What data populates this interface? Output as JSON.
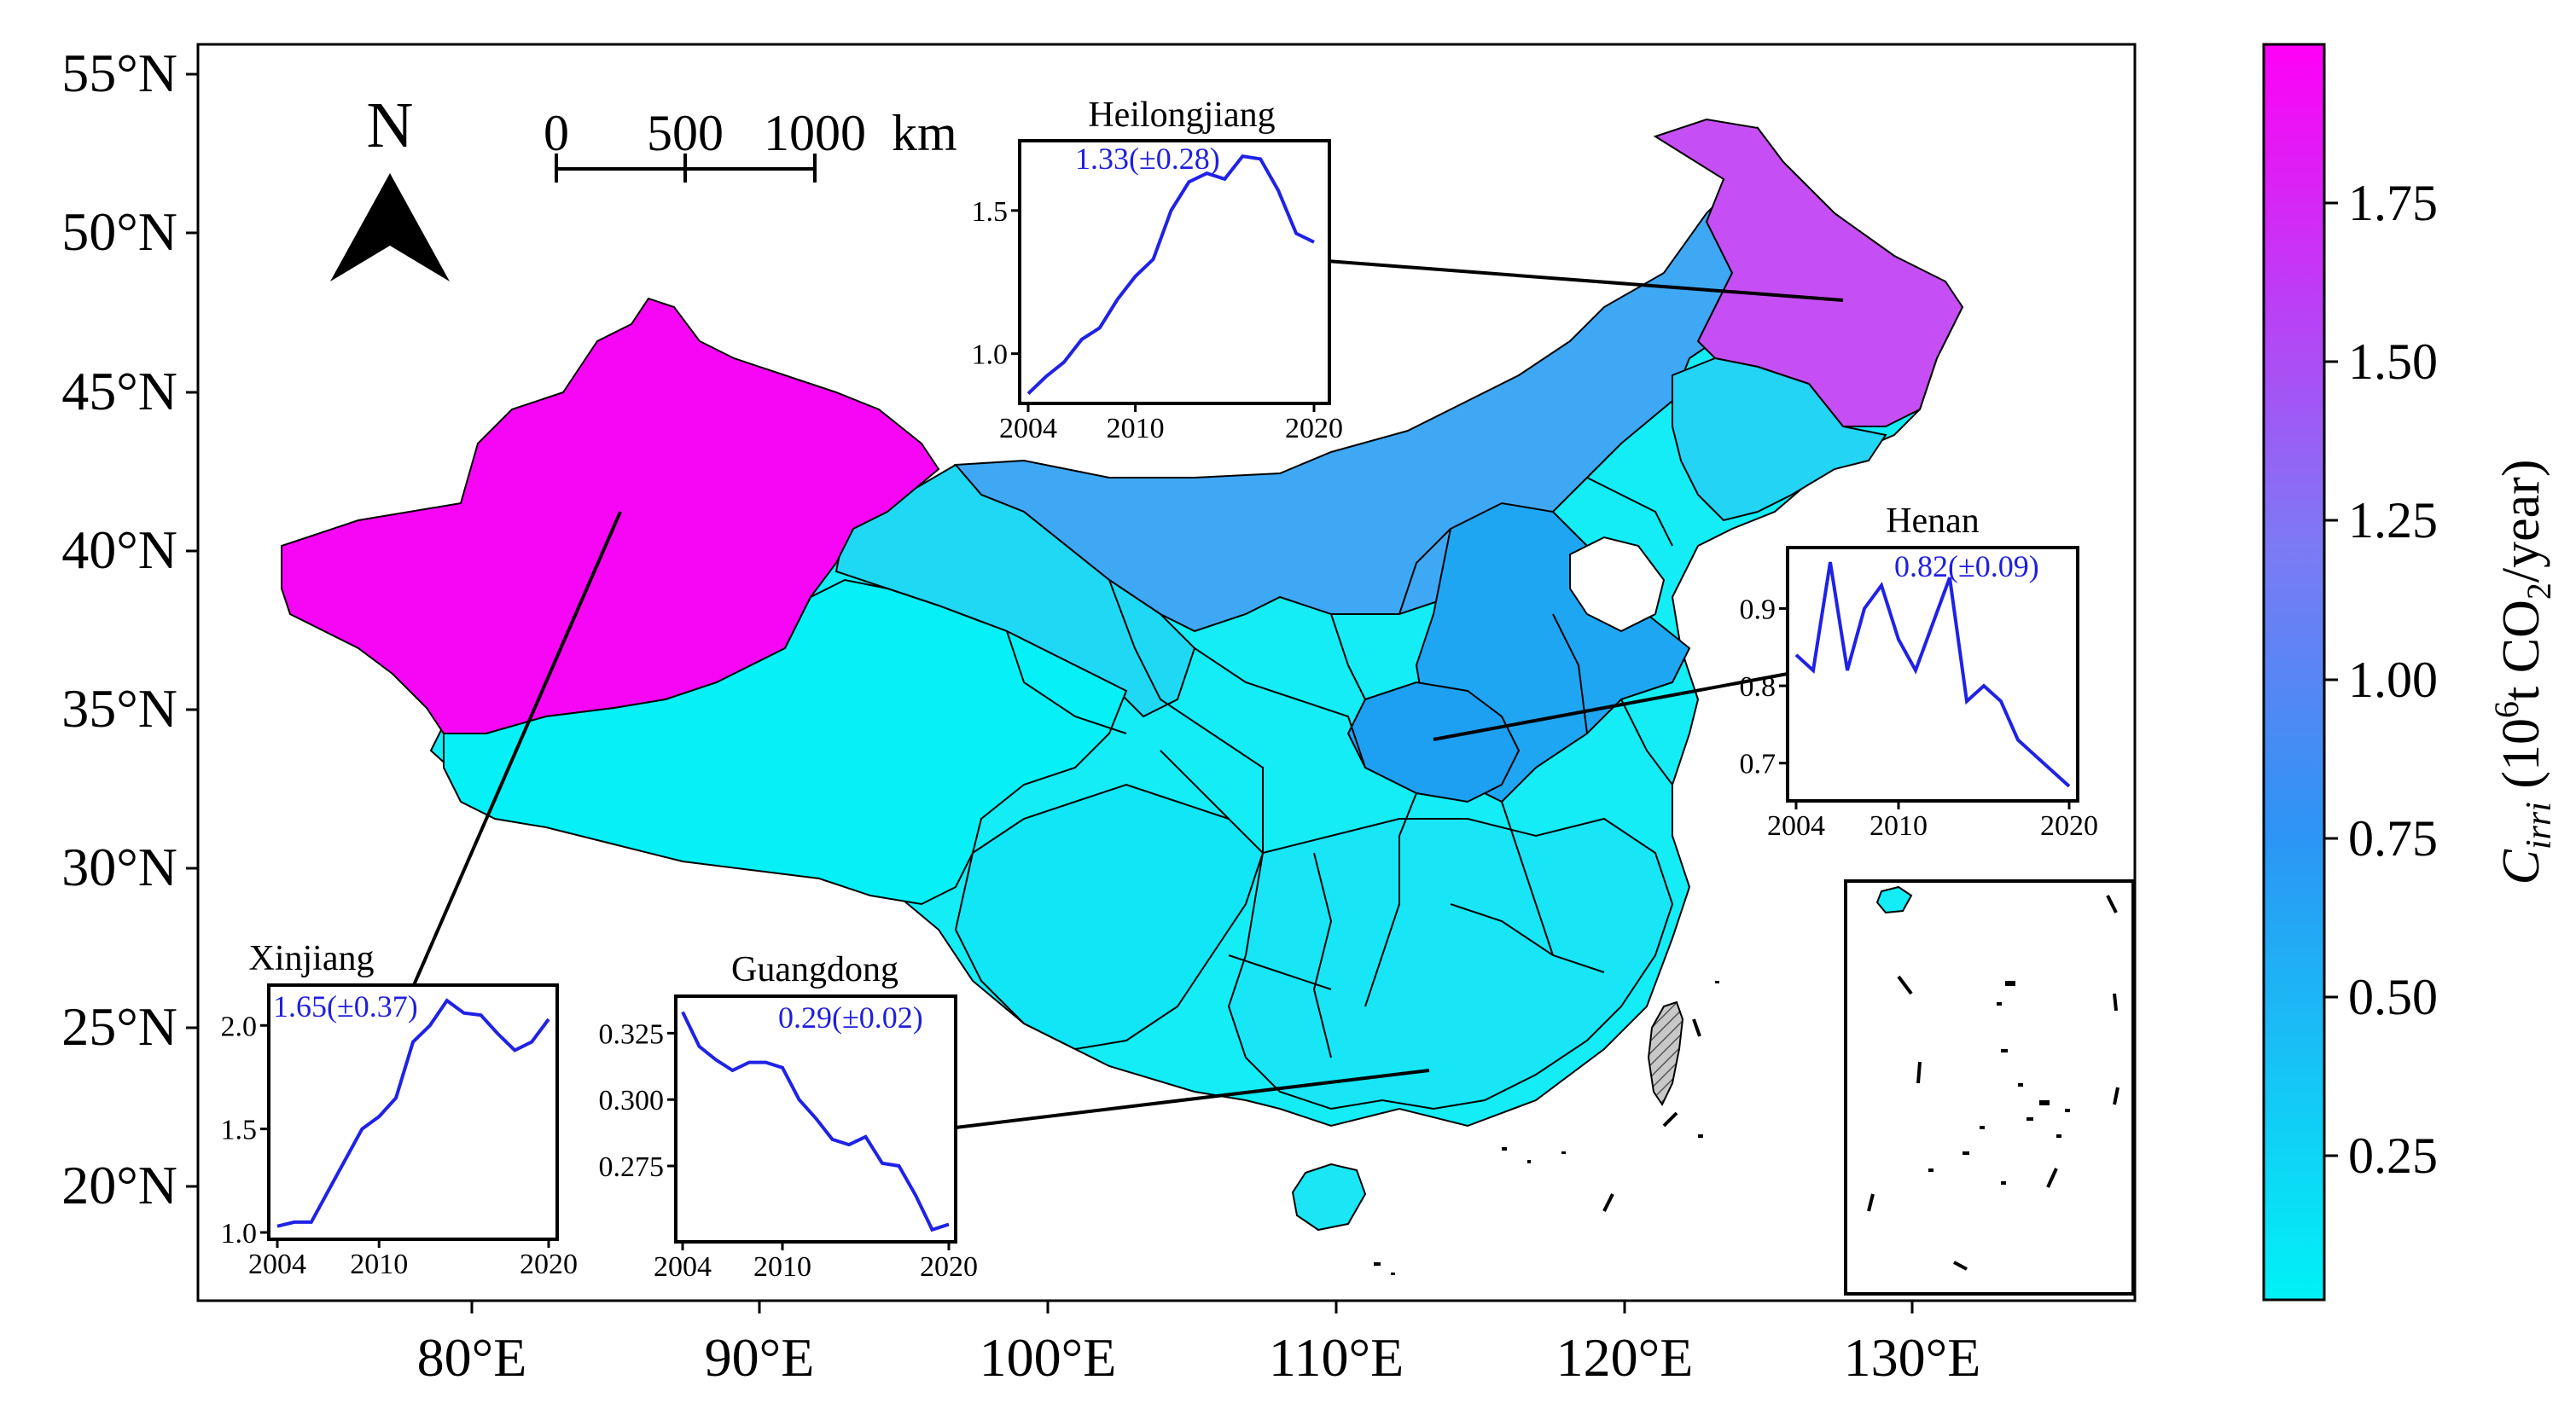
{
  "map": {
    "lat_labels": [
      "55°N",
      "50°N",
      "45°N",
      "40°N",
      "35°N",
      "30°N",
      "25°N",
      "20°N"
    ],
    "lon_labels": [
      "80°E",
      "90°E",
      "100°E",
      "110°E",
      "120°E",
      "130°E"
    ],
    "north_label": "N",
    "scale_ticks": [
      "0",
      "500",
      "1000"
    ],
    "scale_unit": "km"
  },
  "colorbar": {
    "ticks": [
      "1.75",
      "1.50",
      "1.25",
      "1.00",
      "0.75",
      "0.50",
      "0.25"
    ],
    "label_symbol": "C",
    "label_subscript": "irri",
    "label_open": " (10",
    "label_power": "6",
    "label_mid": "t CO",
    "label_co2_sub": "2",
    "label_close": "/year)",
    "color_low": "#00f2f6",
    "color_mid": "#2c95f5",
    "color_high": "#ff00f6"
  },
  "insets": {
    "heilongjiang": {
      "title": "Heilongjiang",
      "stat": "1.33(±0.28)",
      "x_ticks": [
        "2004",
        "2010",
        "2020"
      ],
      "y_ticks": [
        "1.5",
        "1.0"
      ]
    },
    "henan": {
      "title": "Henan",
      "stat": "0.82(±0.09)",
      "x_ticks": [
        "2004",
        "2010",
        "2020"
      ],
      "y_ticks": [
        "0.9",
        "0.8",
        "0.7"
      ]
    },
    "xinjiang": {
      "title": "Xinjiang",
      "stat": "1.65(±0.37)",
      "x_ticks": [
        "2004",
        "2010",
        "2020"
      ],
      "y_ticks": [
        "2.0",
        "1.5",
        "1.0"
      ]
    },
    "guangdong": {
      "title": "Guangdong",
      "stat": "0.29(±0.02)",
      "x_ticks": [
        "2004",
        "2010",
        "2020"
      ],
      "y_ticks": [
        "0.325",
        "0.300",
        "0.275"
      ]
    }
  },
  "chart_data": [
    {
      "type": "line",
      "title": "Heilongjiang",
      "annotation": "1.33(±0.28)",
      "x": [
        2004,
        2005,
        2006,
        2007,
        2008,
        2009,
        2010,
        2011,
        2012,
        2013,
        2014,
        2015,
        2016,
        2017,
        2018,
        2019,
        2020
      ],
      "series": [
        {
          "values": [
            0.86,
            0.92,
            0.97,
            1.05,
            1.09,
            1.19,
            1.27,
            1.33,
            1.5,
            1.6,
            1.63,
            1.61,
            1.69,
            1.68,
            1.57,
            1.42,
            1.39
          ]
        }
      ],
      "ylim": [
        0.85,
        1.72
      ]
    },
    {
      "type": "line",
      "title": "Henan",
      "annotation": "0.82(±0.09)",
      "x": [
        2004,
        2005,
        2006,
        2007,
        2008,
        2009,
        2010,
        2011,
        2012,
        2013,
        2014,
        2015,
        2016,
        2017,
        2018,
        2019,
        2020
      ],
      "series": [
        {
          "values": [
            0.84,
            0.82,
            0.96,
            0.82,
            0.9,
            0.93,
            0.86,
            0.82,
            0.88,
            0.94,
            0.78,
            0.8,
            0.78,
            0.73,
            0.71,
            0.69,
            0.67
          ]
        }
      ],
      "ylim": [
        0.66,
        0.97
      ]
    },
    {
      "type": "line",
      "title": "Xinjiang",
      "annotation": "1.65(±0.37)",
      "x": [
        2004,
        2005,
        2006,
        2007,
        2008,
        2009,
        2010,
        2011,
        2012,
        2013,
        2014,
        2015,
        2016,
        2017,
        2018,
        2019,
        2020
      ],
      "series": [
        {
          "values": [
            1.03,
            1.05,
            1.05,
            1.2,
            1.35,
            1.5,
            1.56,
            1.65,
            1.92,
            2.0,
            2.12,
            2.06,
            2.05,
            1.96,
            1.88,
            1.92,
            2.03
          ]
        }
      ],
      "ylim": [
        1.0,
        2.17
      ]
    },
    {
      "type": "line",
      "title": "Guangdong",
      "annotation": "0.29(±0.02)",
      "x": [
        2004,
        2005,
        2006,
        2007,
        2008,
        2009,
        2010,
        2011,
        2012,
        2013,
        2014,
        2015,
        2016,
        2017,
        2018,
        2019,
        2020
      ],
      "series": [
        {
          "values": [
            0.333,
            0.32,
            0.315,
            0.311,
            0.314,
            0.314,
            0.312,
            0.3,
            0.293,
            0.285,
            0.283,
            0.286,
            0.276,
            0.275,
            0.264,
            0.251,
            0.253
          ]
        }
      ],
      "ylim": [
        0.249,
        0.337
      ]
    }
  ]
}
